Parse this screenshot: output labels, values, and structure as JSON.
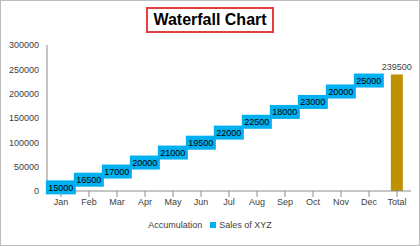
{
  "chart_data": {
    "type": "waterfall",
    "title": "Waterfall Chart",
    "categories": [
      "Jan",
      "Feb",
      "Mar",
      "Apr",
      "May",
      "Jun",
      "Jul",
      "Aug",
      "Sep",
      "Oct",
      "Nov",
      "Dec",
      "Total"
    ],
    "series": [
      {
        "name": "Accumulation"
      },
      {
        "name": "Sales of XYZ",
        "color": "#00b0f0",
        "colors": [
          "#00b0f0",
          "#00b0f0",
          "#00b0f0",
          "#00b0f0",
          "#00b0f0",
          "#00b0f0",
          "#00b0f0",
          "#00b0f0",
          "#00b0f0",
          "#00b0f0",
          "#00b0f0",
          "#00b0f0",
          "#bf9000"
        ],
        "values": [
          15000,
          16500,
          17000,
          20000,
          21000,
          19500,
          22000,
          22500,
          18000,
          23000,
          20000,
          25000,
          239500
        ]
      }
    ],
    "ylim": [
      0,
      300000
    ],
    "yticks": [
      0,
      50000,
      100000,
      150000,
      200000,
      250000,
      300000
    ],
    "grid": false,
    "legend": "bottom",
    "data_labels": true
  }
}
